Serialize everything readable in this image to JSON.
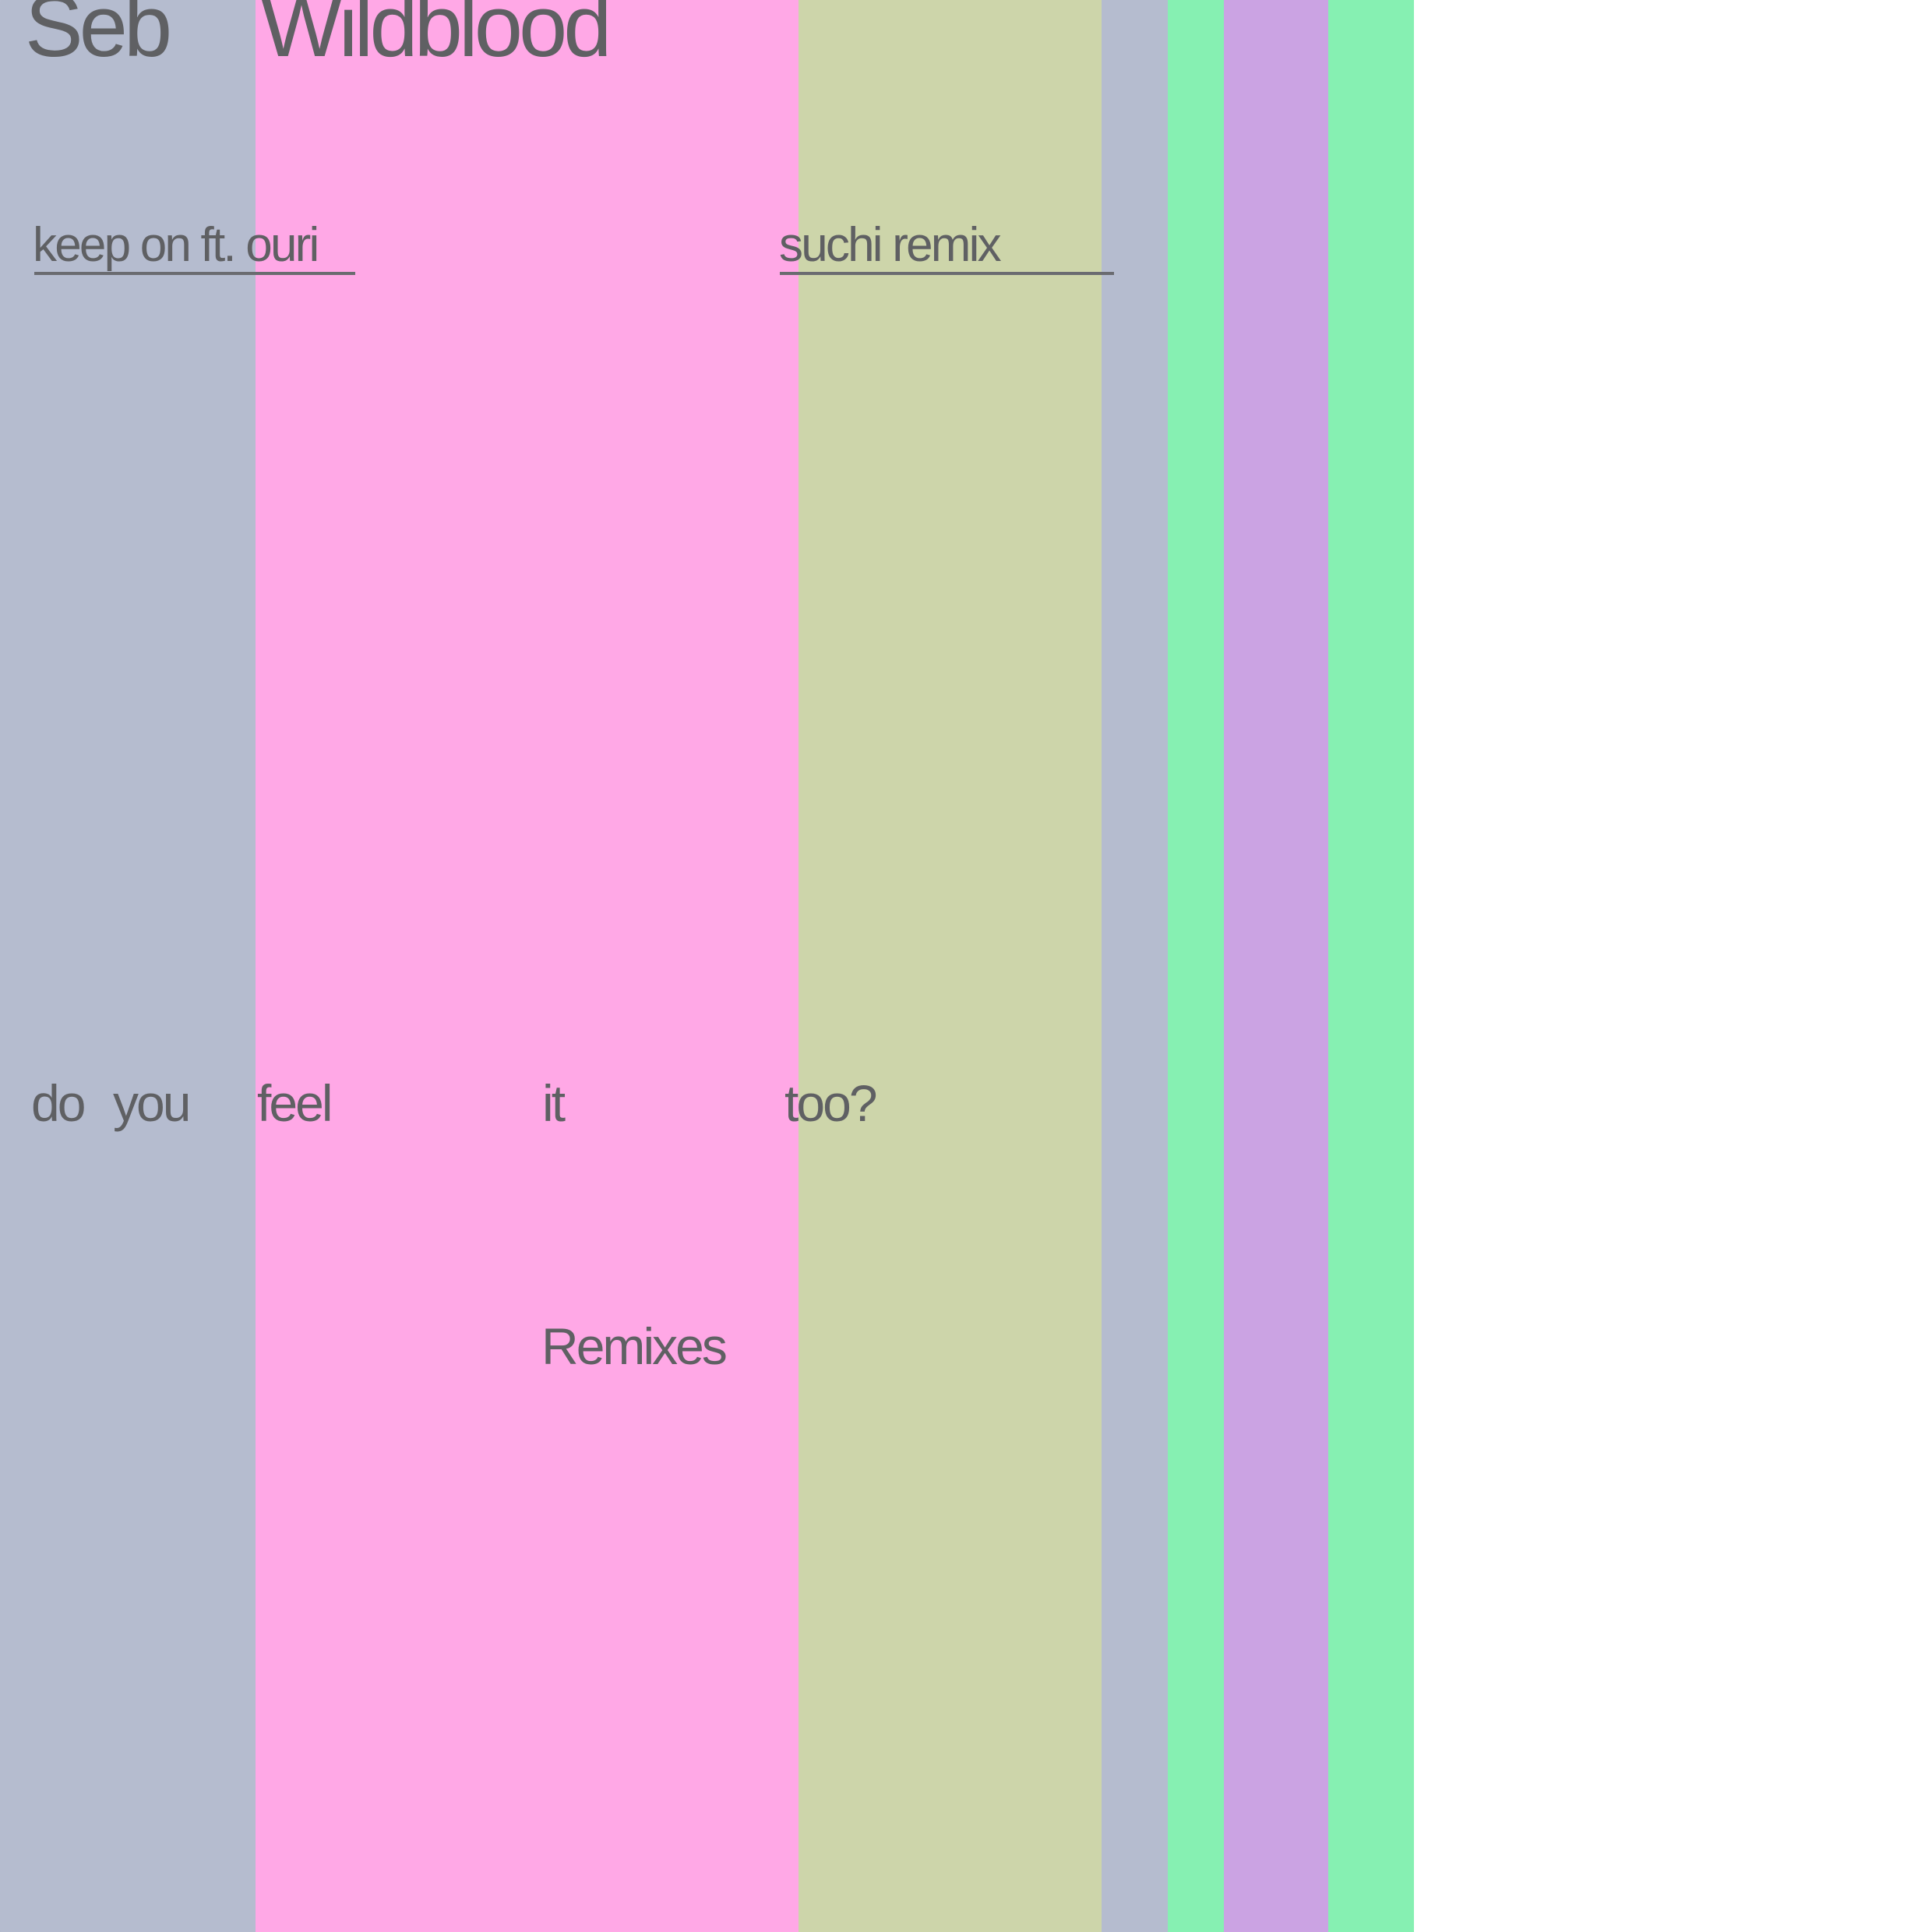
{
  "artist": {
    "first": "Seb",
    "last": "Wildblood"
  },
  "tracks": {
    "left": "keep on ft. ouri",
    "right": "suchi remix"
  },
  "title": {
    "words": [
      "do",
      "you",
      "feel",
      "it",
      "too?"
    ]
  },
  "subtitle": "Remixes",
  "stripes": [
    {
      "color": "#b5bccf"
    },
    {
      "color": "#ffa8e6"
    },
    {
      "color": "#cdd5aa"
    },
    {
      "color": "#b5bccf"
    },
    {
      "color": "#86f0b2"
    },
    {
      "color": "#cba3e3"
    },
    {
      "color": "#86f0b2"
    }
  ],
  "colors": {
    "text": "#5f6063",
    "background": "#ffffff"
  }
}
